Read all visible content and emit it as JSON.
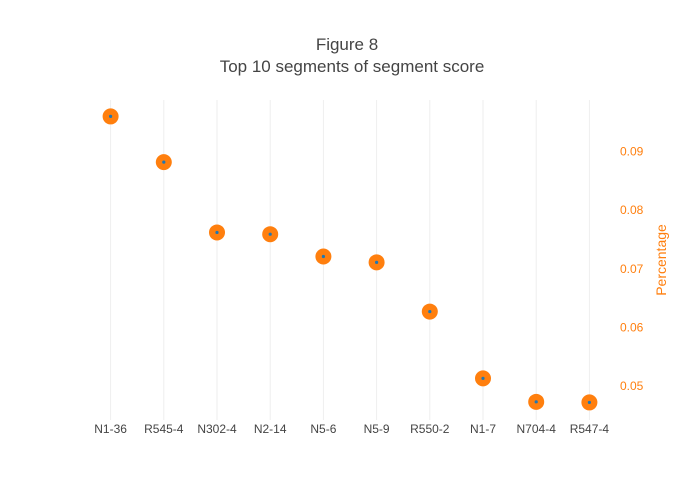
{
  "chart_data": {
    "type": "scatter",
    "title": "Figure 8",
    "subtitle": "Top 10 segments of segment score",
    "xlabel": "",
    "ylabel": "Percentage",
    "categories": [
      "N1-36",
      "R545-4",
      "N302-4",
      "N2-14",
      "N5-6",
      "N5-9",
      "R550-2",
      "N1-7",
      "N704-4",
      "R547-4"
    ],
    "values": [
      0.096,
      0.0882,
      0.0762,
      0.0759,
      0.0721,
      0.0711,
      0.0627,
      0.0513,
      0.0473,
      0.0472
    ],
    "ylim": [
      0.0442,
      0.0988
    ],
    "yticks": [
      0.05,
      0.06,
      0.07,
      0.08,
      0.09
    ],
    "yaxis_side": "right",
    "grid": {
      "x": true,
      "y": false
    },
    "colors": {
      "marker": "#ff7f0e",
      "marker_center": "#1f77b4",
      "y_axis": "#ff7f0e",
      "text": "#444444"
    }
  }
}
